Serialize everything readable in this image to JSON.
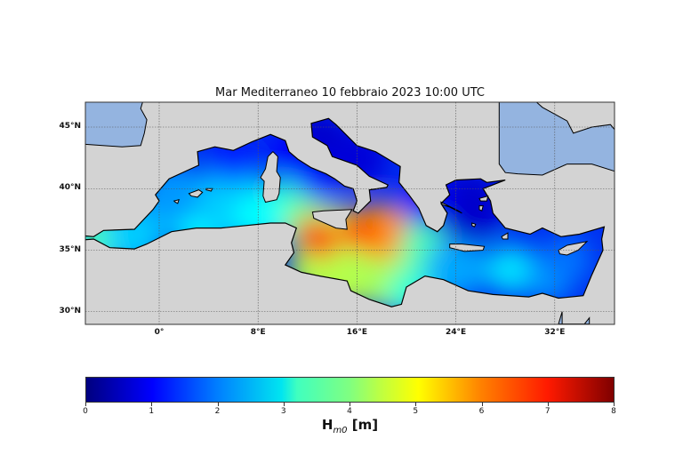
{
  "title": "Mar Mediterraneo 10 febbraio 2023  10:00 UTC",
  "map": {
    "lat_labels": [
      "45°N",
      "40°N",
      "35°N",
      "30°N"
    ],
    "lat_values": [
      45,
      40,
      35,
      30
    ],
    "lon_labels": [
      "0°",
      "8°E",
      "16°E",
      "24°E",
      "32°E"
    ],
    "lon_values": [
      0,
      8,
      16,
      24,
      32
    ],
    "extent": {
      "lon": [
        -6,
        37
      ],
      "lat": [
        29,
        47
      ]
    },
    "land_color": "#d3d3d3",
    "outside_water_color": "#94b4e0",
    "grid": true
  },
  "colorbar": {
    "colormap": "jet",
    "range": [
      0,
      8
    ],
    "ticks": [
      "0",
      "1",
      "2",
      "3",
      "4",
      "5",
      "6",
      "7",
      "8"
    ],
    "label_main": "H",
    "label_sub": "m0",
    "label_unit": " [m]"
  }
}
